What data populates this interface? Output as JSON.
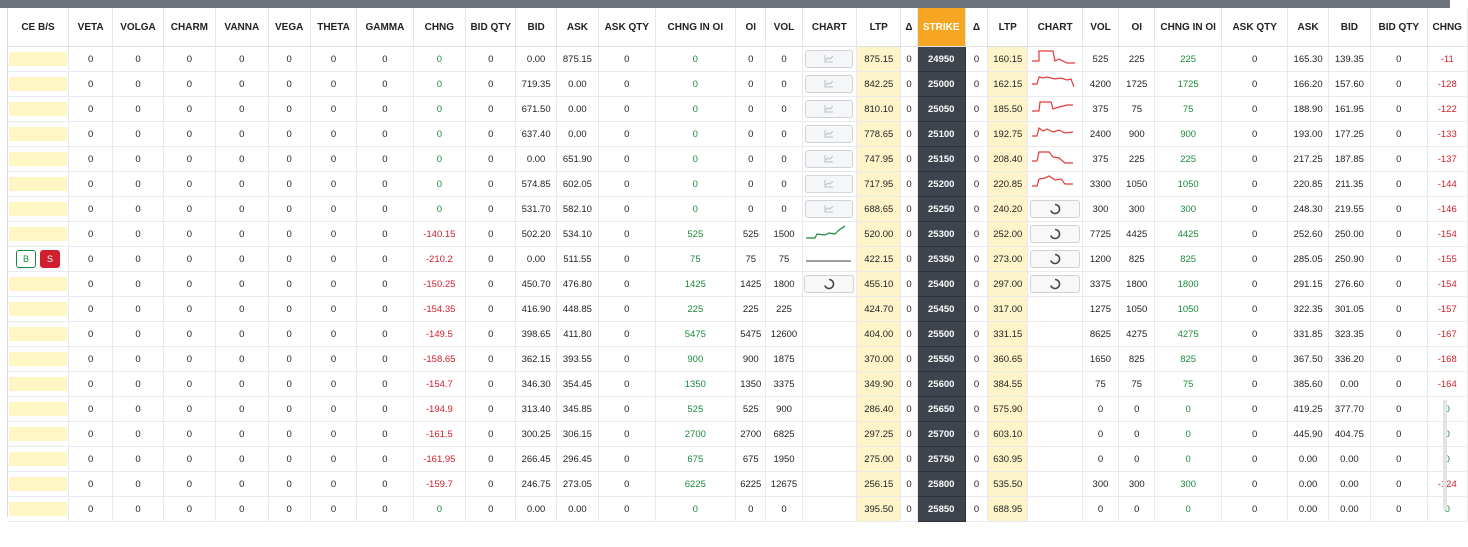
{
  "headers": [
    "CE B/S",
    "VETA",
    "VOLGA",
    "CHARM",
    "VANNA",
    "VEGA",
    "THETA",
    "GAMMA",
    "CHNG",
    "BID QTY",
    "BID",
    "ASK",
    "ASK QTY",
    "CHNG IN OI",
    "OI",
    "VOL",
    "CHART",
    "LTP",
    "Δ",
    "STRIKE",
    "Δ",
    "LTP",
    "CHART",
    "VOL",
    "OI",
    "CHNG IN OI",
    "ASK QTY",
    "ASK",
    "BID",
    "BID QTY",
    "CHNG"
  ],
  "bs_buttons": {
    "buy": "B",
    "sell": "S"
  },
  "icons": {
    "chart": "chart-line-icon",
    "loading": "spinner-icon"
  },
  "colors": {
    "strike_header": "#f5a623",
    "strike_cell": "#3d444d",
    "ltp_cell": "#fdf4c9",
    "positive": "#1a8a3c",
    "negative": "#d0202e"
  },
  "rows": [
    {
      "ce_chng": "0",
      "ce_bidqty": "0",
      "ce_bid": "0.00",
      "ce_ask": "875.15",
      "ce_askqty": "0",
      "ce_chngoi": "0",
      "ce_oi": "0",
      "ce_vol": "0",
      "ce_chart": "btn",
      "ce_ltp": "875.15",
      "strike": "24950",
      "pe_ltp": "160.15",
      "pe_chart": "spark1",
      "pe_vol": "525",
      "pe_oi": "225",
      "pe_chngoi": "225",
      "pe_askqty": "0",
      "pe_ask": "165.30",
      "pe_bid": "139.35",
      "pe_bidqty": "0",
      "pe_chng": "-11"
    },
    {
      "ce_chng": "0",
      "ce_bidqty": "0",
      "ce_bid": "719.35",
      "ce_ask": "0.00",
      "ce_askqty": "0",
      "ce_chngoi": "0",
      "ce_oi": "0",
      "ce_vol": "0",
      "ce_chart": "btn",
      "ce_ltp": "842.25",
      "strike": "25000",
      "pe_ltp": "162.15",
      "pe_chart": "spark2",
      "pe_vol": "4200",
      "pe_oi": "1725",
      "pe_chngoi": "1725",
      "pe_askqty": "0",
      "pe_ask": "166.20",
      "pe_bid": "157.60",
      "pe_bidqty": "0",
      "pe_chng": "-128"
    },
    {
      "ce_chng": "0",
      "ce_bidqty": "0",
      "ce_bid": "671.50",
      "ce_ask": "0.00",
      "ce_askqty": "0",
      "ce_chngoi": "0",
      "ce_oi": "0",
      "ce_vol": "0",
      "ce_chart": "btn",
      "ce_ltp": "810.10",
      "strike": "25050",
      "pe_ltp": "185.50",
      "pe_chart": "spark3",
      "pe_vol": "375",
      "pe_oi": "75",
      "pe_chngoi": "75",
      "pe_askqty": "0",
      "pe_ask": "188.90",
      "pe_bid": "161.95",
      "pe_bidqty": "0",
      "pe_chng": "-122"
    },
    {
      "ce_chng": "0",
      "ce_bidqty": "0",
      "ce_bid": "637.40",
      "ce_ask": "0.00",
      "ce_askqty": "0",
      "ce_chngoi": "0",
      "ce_oi": "0",
      "ce_vol": "0",
      "ce_chart": "btn",
      "ce_ltp": "778.65",
      "strike": "25100",
      "pe_ltp": "192.75",
      "pe_chart": "spark4",
      "pe_vol": "2400",
      "pe_oi": "900",
      "pe_chngoi": "900",
      "pe_askqty": "0",
      "pe_ask": "193.00",
      "pe_bid": "177.25",
      "pe_bidqty": "0",
      "pe_chng": "-133"
    },
    {
      "ce_chng": "0",
      "ce_bidqty": "0",
      "ce_bid": "0.00",
      "ce_ask": "651.90",
      "ce_askqty": "0",
      "ce_chngoi": "0",
      "ce_oi": "0",
      "ce_vol": "0",
      "ce_chart": "btn",
      "ce_ltp": "747.95",
      "strike": "25150",
      "pe_ltp": "208.40",
      "pe_chart": "spark5",
      "pe_vol": "375",
      "pe_oi": "225",
      "pe_chngoi": "225",
      "pe_askqty": "0",
      "pe_ask": "217.25",
      "pe_bid": "187.85",
      "pe_bidqty": "0",
      "pe_chng": "-137"
    },
    {
      "ce_chng": "0",
      "ce_bidqty": "0",
      "ce_bid": "574.85",
      "ce_ask": "602.05",
      "ce_askqty": "0",
      "ce_chngoi": "0",
      "ce_oi": "0",
      "ce_vol": "0",
      "ce_chart": "btn",
      "ce_ltp": "717.95",
      "strike": "25200",
      "pe_ltp": "220.85",
      "pe_chart": "spark6",
      "pe_vol": "3300",
      "pe_oi": "1050",
      "pe_chngoi": "1050",
      "pe_askqty": "0",
      "pe_ask": "220.85",
      "pe_bid": "211.35",
      "pe_bidqty": "0",
      "pe_chng": "-144"
    },
    {
      "ce_chng": "0",
      "ce_bidqty": "0",
      "ce_bid": "531.70",
      "ce_ask": "582.10",
      "ce_askqty": "0",
      "ce_chngoi": "0",
      "ce_oi": "0",
      "ce_vol": "0",
      "ce_chart": "btn",
      "ce_ltp": "688.65",
      "strike": "25250",
      "pe_ltp": "240.20",
      "pe_chart": "spin",
      "pe_vol": "300",
      "pe_oi": "300",
      "pe_chngoi": "300",
      "pe_askqty": "0",
      "pe_ask": "248.30",
      "pe_bid": "219.55",
      "pe_bidqty": "0",
      "pe_chng": "-146"
    },
    {
      "ce_chng": "-140.15",
      "ce_bidqty": "0",
      "ce_bid": "502.20",
      "ce_ask": "534.10",
      "ce_askqty": "0",
      "ce_chngoi": "525",
      "ce_oi": "525",
      "ce_vol": "1500",
      "ce_chart": "sparkG",
      "ce_ltp": "520.00",
      "strike": "25300",
      "pe_ltp": "252.00",
      "pe_chart": "spin",
      "pe_vol": "7725",
      "pe_oi": "4425",
      "pe_chngoi": "4425",
      "pe_askqty": "0",
      "pe_ask": "252.60",
      "pe_bid": "250.00",
      "pe_bidqty": "0",
      "pe_chng": "-154"
    },
    {
      "ce_chng": "-210.2",
      "ce_bidqty": "0",
      "ce_bid": "0.00",
      "ce_ask": "511.55",
      "ce_askqty": "0",
      "ce_chngoi": "75",
      "ce_oi": "75",
      "ce_vol": "75",
      "ce_chart": "flat",
      "ce_ltp": "422.15",
      "strike": "25350",
      "pe_ltp": "273.00",
      "pe_chart": "spin",
      "pe_vol": "1200",
      "pe_oi": "825",
      "pe_chngoi": "825",
      "pe_askqty": "0",
      "pe_ask": "285.05",
      "pe_bid": "250.90",
      "pe_bidqty": "0",
      "pe_chng": "-155",
      "bs": true
    },
    {
      "ce_chng": "-150.25",
      "ce_bidqty": "0",
      "ce_bid": "450.70",
      "ce_ask": "476.80",
      "ce_askqty": "0",
      "ce_chngoi": "1425",
      "ce_oi": "1425",
      "ce_vol": "1800",
      "ce_chart": "spin",
      "ce_ltp": "455.10",
      "strike": "25400",
      "pe_ltp": "297.00",
      "pe_chart": "spin",
      "pe_vol": "3375",
      "pe_oi": "1800",
      "pe_chngoi": "1800",
      "pe_askqty": "0",
      "pe_ask": "291.15",
      "pe_bid": "276.60",
      "pe_bidqty": "0",
      "pe_chng": "-154"
    },
    {
      "ce_chng": "-154.35",
      "ce_bidqty": "0",
      "ce_bid": "416.90",
      "ce_ask": "448.85",
      "ce_askqty": "0",
      "ce_chngoi": "225",
      "ce_oi": "225",
      "ce_vol": "225",
      "ce_chart": "",
      "ce_ltp": "424.70",
      "strike": "25450",
      "pe_ltp": "317.00",
      "pe_chart": "",
      "pe_vol": "1275",
      "pe_oi": "1050",
      "pe_chngoi": "1050",
      "pe_askqty": "0",
      "pe_ask": "322.35",
      "pe_bid": "301.05",
      "pe_bidqty": "0",
      "pe_chng": "-157"
    },
    {
      "ce_chng": "-149.5",
      "ce_bidqty": "0",
      "ce_bid": "398.65",
      "ce_ask": "411.80",
      "ce_askqty": "0",
      "ce_chngoi": "5475",
      "ce_oi": "5475",
      "ce_vol": "12600",
      "ce_chart": "",
      "ce_ltp": "404.00",
      "strike": "25500",
      "pe_ltp": "331.15",
      "pe_chart": "",
      "pe_vol": "8625",
      "pe_oi": "4275",
      "pe_chngoi": "4275",
      "pe_askqty": "0",
      "pe_ask": "331.85",
      "pe_bid": "323.35",
      "pe_bidqty": "0",
      "pe_chng": "-167"
    },
    {
      "ce_chng": "-158.65",
      "ce_bidqty": "0",
      "ce_bid": "362.15",
      "ce_ask": "393.55",
      "ce_askqty": "0",
      "ce_chngoi": "900",
      "ce_oi": "900",
      "ce_vol": "1875",
      "ce_chart": "",
      "ce_ltp": "370.00",
      "strike": "25550",
      "pe_ltp": "360.65",
      "pe_chart": "",
      "pe_vol": "1650",
      "pe_oi": "825",
      "pe_chngoi": "825",
      "pe_askqty": "0",
      "pe_ask": "367.50",
      "pe_bid": "336.20",
      "pe_bidqty": "0",
      "pe_chng": "-168"
    },
    {
      "ce_chng": "-154.7",
      "ce_bidqty": "0",
      "ce_bid": "346.30",
      "ce_ask": "354.45",
      "ce_askqty": "0",
      "ce_chngoi": "1350",
      "ce_oi": "1350",
      "ce_vol": "3375",
      "ce_chart": "",
      "ce_ltp": "349.90",
      "strike": "25600",
      "pe_ltp": "384.55",
      "pe_chart": "",
      "pe_vol": "75",
      "pe_oi": "75",
      "pe_chngoi": "75",
      "pe_askqty": "0",
      "pe_ask": "385.60",
      "pe_bid": "0.00",
      "pe_bidqty": "0",
      "pe_chng": "-164"
    },
    {
      "ce_chng": "-194.9",
      "ce_bidqty": "0",
      "ce_bid": "313.40",
      "ce_ask": "345.85",
      "ce_askqty": "0",
      "ce_chngoi": "525",
      "ce_oi": "525",
      "ce_vol": "900",
      "ce_chart": "",
      "ce_ltp": "286.40",
      "strike": "25650",
      "pe_ltp": "575.90",
      "pe_chart": "",
      "pe_vol": "0",
      "pe_oi": "0",
      "pe_chngoi": "0",
      "pe_askqty": "0",
      "pe_ask": "419.25",
      "pe_bid": "377.70",
      "pe_bidqty": "0",
      "pe_chng": "0"
    },
    {
      "ce_chng": "-161.5",
      "ce_bidqty": "0",
      "ce_bid": "300.25",
      "ce_ask": "306.15",
      "ce_askqty": "0",
      "ce_chngoi": "2700",
      "ce_oi": "2700",
      "ce_vol": "6825",
      "ce_chart": "",
      "ce_ltp": "297.25",
      "strike": "25700",
      "pe_ltp": "603.10",
      "pe_chart": "",
      "pe_vol": "0",
      "pe_oi": "0",
      "pe_chngoi": "0",
      "pe_askqty": "0",
      "pe_ask": "445.90",
      "pe_bid": "404.75",
      "pe_bidqty": "0",
      "pe_chng": "0"
    },
    {
      "ce_chng": "-161.95",
      "ce_bidqty": "0",
      "ce_bid": "266.45",
      "ce_ask": "296.45",
      "ce_askqty": "0",
      "ce_chngoi": "675",
      "ce_oi": "675",
      "ce_vol": "1950",
      "ce_chart": "",
      "ce_ltp": "275.00",
      "strike": "25750",
      "pe_ltp": "630.95",
      "pe_chart": "",
      "pe_vol": "0",
      "pe_oi": "0",
      "pe_chngoi": "0",
      "pe_askqty": "0",
      "pe_ask": "0.00",
      "pe_bid": "0.00",
      "pe_bidqty": "0",
      "pe_chng": "0"
    },
    {
      "ce_chng": "-159.7",
      "ce_bidqty": "0",
      "ce_bid": "246.75",
      "ce_ask": "273.05",
      "ce_askqty": "0",
      "ce_chngoi": "6225",
      "ce_oi": "6225",
      "ce_vol": "12675",
      "ce_chart": "",
      "ce_ltp": "256.15",
      "strike": "25800",
      "pe_ltp": "535.50",
      "pe_chart": "",
      "pe_vol": "300",
      "pe_oi": "300",
      "pe_chngoi": "300",
      "pe_askqty": "0",
      "pe_ask": "0.00",
      "pe_bid": "0.00",
      "pe_bidqty": "0",
      "pe_chng": "-124"
    },
    {
      "ce_chng": "0",
      "ce_bidqty": "0",
      "ce_bid": "0.00",
      "ce_ask": "0.00",
      "ce_askqty": "0",
      "ce_chngoi": "0",
      "ce_oi": "0",
      "ce_vol": "0",
      "ce_chart": "",
      "ce_ltp": "395.50",
      "strike": "25850",
      "pe_ltp": "688.95",
      "pe_chart": "",
      "pe_vol": "0",
      "pe_oi": "0",
      "pe_chngoi": "0",
      "pe_askqty": "0",
      "pe_ask": "0.00",
      "pe_bid": "0.00",
      "pe_bidqty": "0",
      "pe_chng": "0"
    }
  ]
}
